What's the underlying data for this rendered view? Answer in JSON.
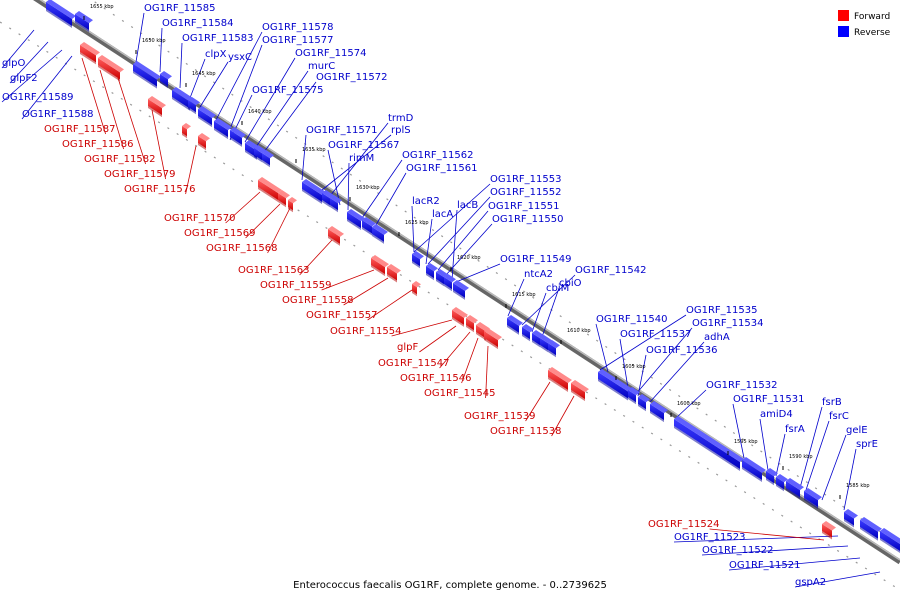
{
  "caption": "Enterococcus faecalis OG1RF, complete genome. - 0..2739625",
  "legend": [
    {
      "label": "Forward",
      "color": "#ff0000"
    },
    {
      "label": "Reverse",
      "color": "#0000ff"
    }
  ],
  "ticks": [
    "1655 kbp",
    "1650 kbp",
    "1645 kbp",
    "1640 kbp",
    "1635 kbp",
    "1630 kbp",
    "1625 kbp",
    "1620 kbp",
    "1615 kbp",
    "1610 kbp",
    "1605 kbp",
    "1600 kbp",
    "1595 kbp",
    "1590 kbp",
    "1585 kbp"
  ],
  "reverse_labels": [
    "OG1RF_11585",
    "OG1RF_11584",
    "OG1RF_11583",
    "clpX",
    "ysxC",
    "OG1RF_11578",
    "OG1RF_11577",
    "OG1RF_11574",
    "murC",
    "OG1RF_11572",
    "OG1RF_11575",
    "trmD",
    "rplS",
    "OG1RF_11571",
    "OG1RF_11567",
    "rimM",
    "OG1RF_11562",
    "OG1RF_11561",
    "OG1RF_11553",
    "OG1RF_11552",
    "OG1RF_11551",
    "OG1RF_11550",
    "lacR2",
    "lacB",
    "lacA",
    "OG1RF_11549",
    "ntcA2",
    "OG1RF_11542",
    "cbiM",
    "cbiO",
    "OG1RF_11535",
    "OG1RF_11534",
    "OG1RF_11540",
    "OG1RF_11537",
    "adhA",
    "OG1RF_11536",
    "OG1RF_11532",
    "OG1RF_11531",
    "amiD4",
    "fsrB",
    "fsrA",
    "fsrC",
    "gelE",
    "sprE",
    "glpO",
    "glpF2",
    "OG1RF_11589",
    "OG1RF_11588",
    "OG1RF_11523",
    "OG1RF_11522",
    "OG1RF_11521",
    "gspA2"
  ],
  "forward_labels": [
    "OG1RF_11587",
    "OG1RF_11586",
    "OG1RF_11582",
    "OG1RF_11579",
    "OG1RF_11576",
    "OG1RF_11570",
    "OG1RF_11569",
    "OG1RF_11568",
    "OG1RF_11563",
    "OG1RF_11559",
    "OG1RF_11558",
    "OG1RF_11557",
    "OG1RF_11554",
    "glpF",
    "OG1RF_11547",
    "OG1RF_11546",
    "OG1RF_11545",
    "OG1RF_11539",
    "OG1RF_11538",
    "OG1RF_11524"
  ]
}
